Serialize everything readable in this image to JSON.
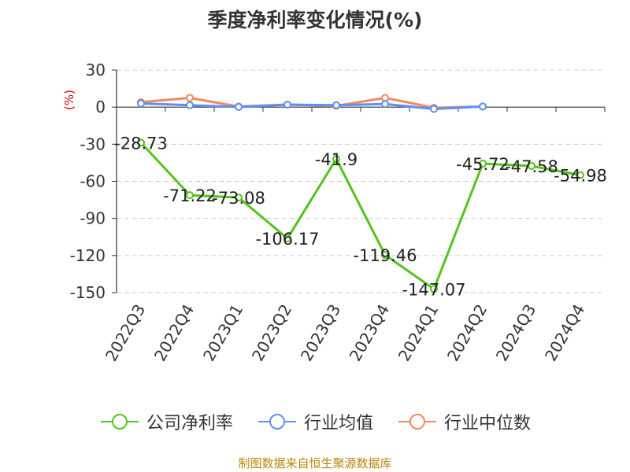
{
  "chart_data": {
    "type": "line",
    "title": "季度净利率变化情况(%)",
    "ylabel": "(%)",
    "xlabel": "",
    "categories": [
      "2022Q3",
      "2022Q4",
      "2023Q1",
      "2023Q2",
      "2023Q3",
      "2023Q4",
      "2024Q1",
      "2024Q2",
      "2024Q3",
      "2024Q4"
    ],
    "ylim": [
      -150,
      30
    ],
    "yticks": [
      "30",
      "0",
      "-30",
      "-60",
      "-90",
      "-120",
      "-150"
    ],
    "grid": true,
    "legend_position": "bottom",
    "series": [
      {
        "name": "公司净利率",
        "color": "#52c41a",
        "values": [
          -28.73,
          -71.22,
          -73.08,
          -106.17,
          -41.9,
          -119.46,
          -147.07,
          -45.72,
          -47.58,
          -54.98
        ],
        "labels": [
          "-28.73",
          "-71.22",
          "-73.08",
          "-106.17",
          "-41.9",
          "-119.46",
          "-147.07",
          "-45.72",
          "-47.58",
          "-54.98"
        ]
      },
      {
        "name": "行业均值",
        "color": "#5b8ff9",
        "values": [
          3.0,
          1.5,
          0.2,
          2.0,
          1.5,
          2.5,
          -1.5,
          0.5,
          null,
          null
        ]
      },
      {
        "name": "行业中位数",
        "color": "#f4895f",
        "values": [
          4.0,
          7.5,
          0.5,
          2.0,
          1.0,
          7.5,
          -0.5,
          0.5,
          null,
          null
        ]
      }
    ]
  },
  "source": "制图数据来自恒生聚源数据库"
}
